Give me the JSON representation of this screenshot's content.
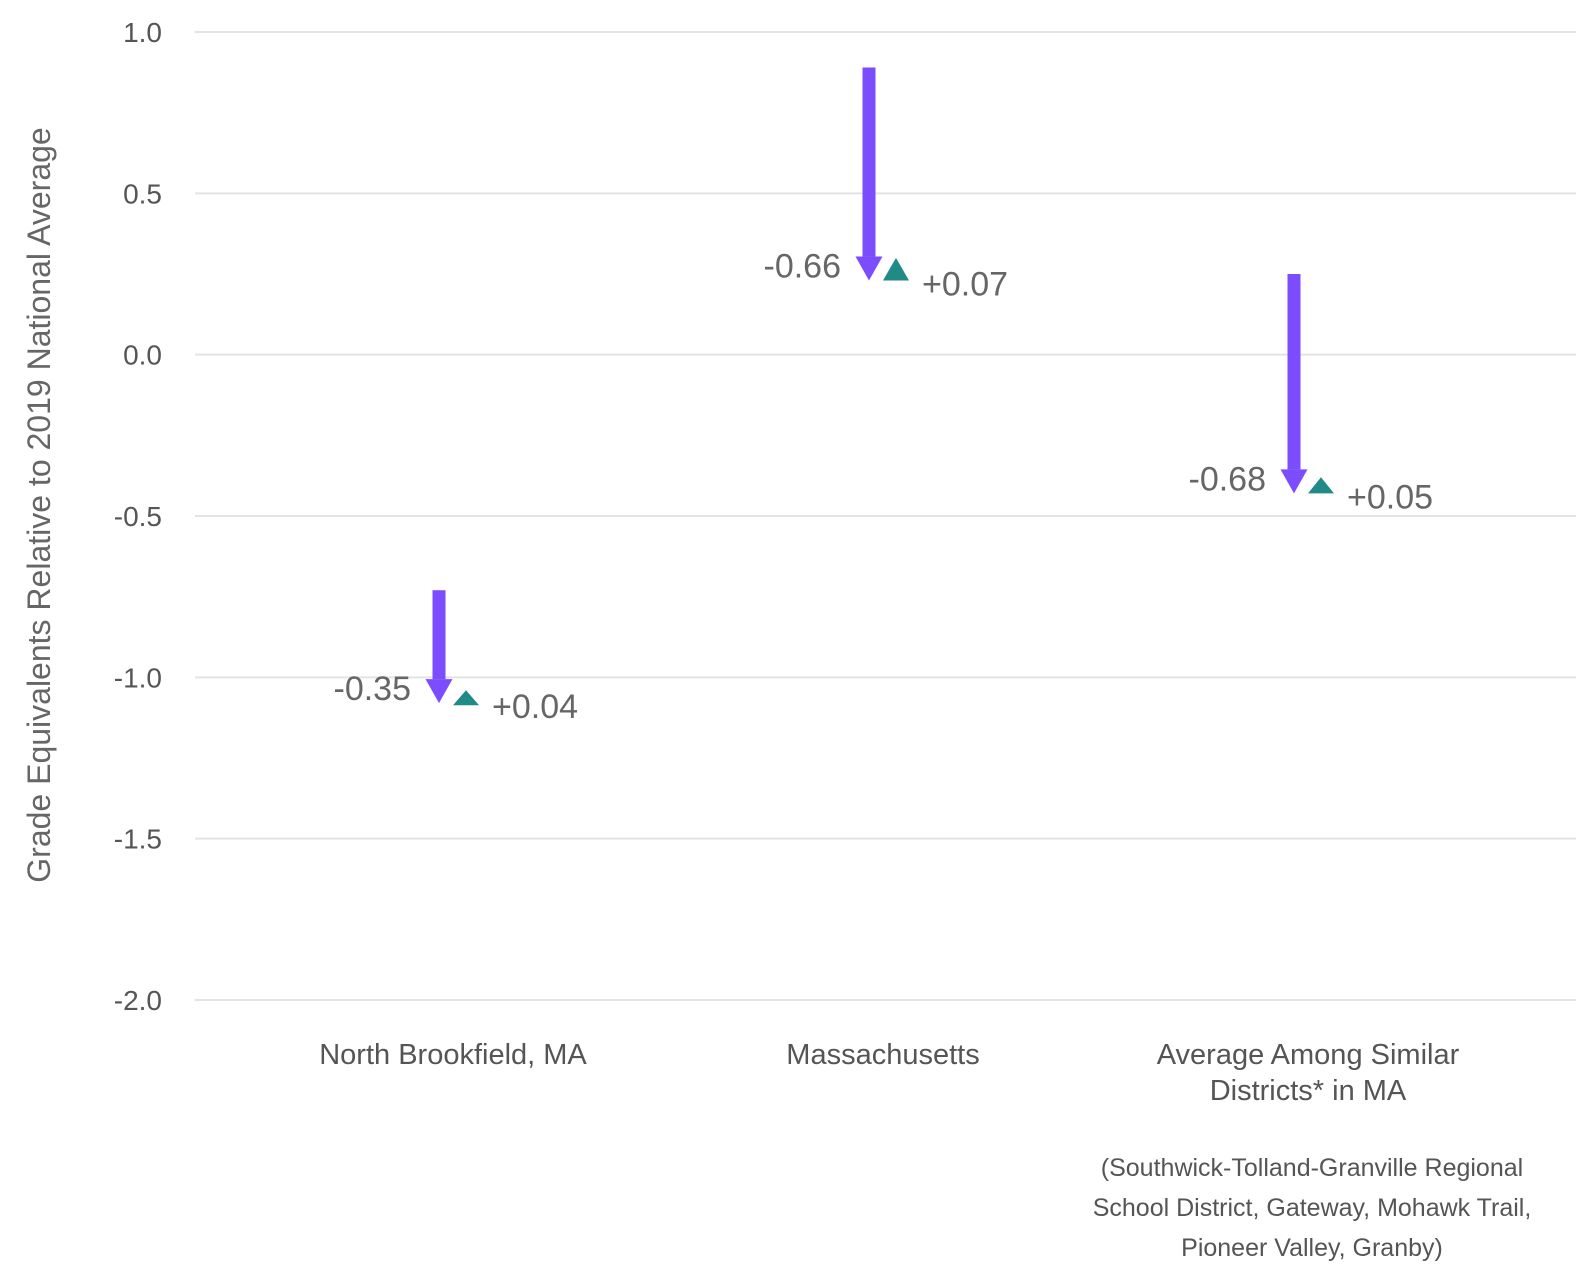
{
  "chart_data": {
    "type": "arrow",
    "ylabel": "Grade Equivalents Relative to 2019 National Average",
    "ylim": [
      -2.0,
      1.0
    ],
    "yticks": [
      1.0,
      0.5,
      0.0,
      -0.5,
      -1.0,
      -1.5,
      -2.0
    ],
    "ytick_labels": [
      "1.0",
      "0.5",
      "0.0",
      "-0.5",
      "-1.0",
      "-1.5",
      "-2.0"
    ],
    "grid": true,
    "categories": [
      {
        "lines": [
          "North Brookfield, MA"
        ],
        "start": -0.73,
        "decline_end": -1.08,
        "decline_label": "-0.35",
        "recovery_end": -1.04,
        "recovery_label": "+0.04"
      },
      {
        "lines": [
          "Massachusetts"
        ],
        "start": 0.89,
        "decline_end": 0.23,
        "decline_label": "-0.66",
        "recovery_end": 0.3,
        "recovery_label": "+0.07"
      },
      {
        "lines": [
          "Average Among Similar",
          "Districts* in MA"
        ],
        "start": 0.25,
        "decline_end": -0.43,
        "decline_label": "-0.68",
        "recovery_end": -0.38,
        "recovery_label": "+0.05"
      }
    ],
    "footnote_lines": [
      "(Southwick-Tolland-Granville Regional",
      "School District, Gateway, Mohawk Trail,",
      "Pioneer Valley, Granby)"
    ],
    "colors": {
      "decline": "#7c4dff",
      "recovery": "#1f8a86"
    }
  }
}
